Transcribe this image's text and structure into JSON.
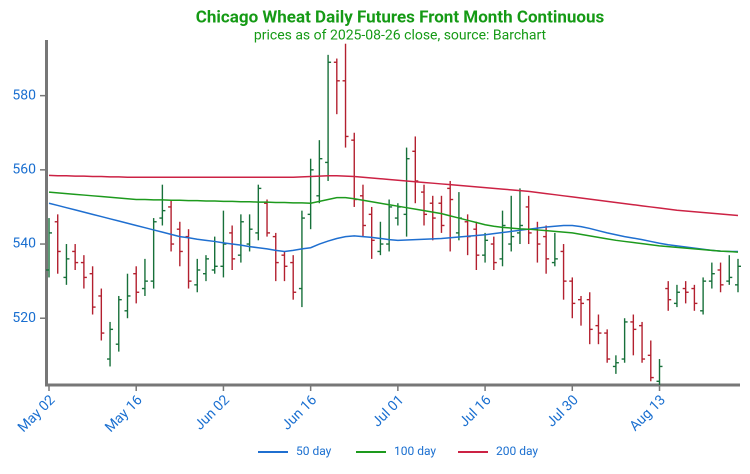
{
  "chart_data": {
    "type": "ohlc",
    "title": "Chicago Wheat Daily Futures Front Month Continuous",
    "subtitle": "prices as of 2025-08-26 close, source: Barchart",
    "categories": [
      "May 02",
      null,
      null,
      null,
      null,
      null,
      null,
      null,
      null,
      null,
      "May 16",
      null,
      null,
      null,
      null,
      null,
      null,
      null,
      null,
      null,
      "Jun 02",
      null,
      null,
      null,
      null,
      null,
      null,
      null,
      null,
      null,
      "Jun 16",
      null,
      null,
      null,
      null,
      null,
      null,
      null,
      null,
      null,
      "Jul 01",
      null,
      null,
      null,
      null,
      null,
      null,
      null,
      null,
      null,
      "Jul 16",
      null,
      null,
      null,
      null,
      null,
      null,
      null,
      null,
      null,
      "Jul 30",
      null,
      null,
      null,
      null,
      null,
      null,
      null,
      null,
      null,
      "Aug 13",
      null,
      null,
      null,
      null,
      null,
      null,
      null,
      null,
      null
    ],
    "ohlc": {
      "up_color": "#17703a",
      "down_color": "#b3202f",
      "open": [
        533,
        546,
        531,
        538,
        535,
        532,
        526,
        509,
        513,
        522,
        532,
        528,
        530,
        547,
        550,
        544,
        542,
        529,
        532,
        533,
        534,
        543,
        537,
        540,
        543,
        551,
        542,
        537,
        535,
        528,
        548,
        553,
        562,
        589,
        584,
        568,
        553,
        548,
        538,
        540,
        547,
        548,
        565,
        554,
        551,
        551,
        555,
        543,
        546,
        544,
        537,
        540,
        536,
        540,
        543,
        550,
        544,
        542,
        535,
        538,
        530,
        525,
        525,
        518,
        516,
        507,
        509,
        519,
        518,
        510,
        503,
        528,
        524,
        528,
        528,
        522,
        530,
        533,
        530,
        529
      ],
      "high": [
        547,
        548,
        540,
        540,
        537,
        534,
        528,
        519,
        526,
        532,
        534,
        536,
        547,
        556,
        552,
        546,
        544,
        536,
        537,
        542,
        549,
        545,
        548,
        548,
        556,
        552,
        543,
        538,
        537,
        549,
        563,
        568,
        591,
        590,
        594,
        570,
        556,
        550,
        546,
        552,
        551,
        566,
        569,
        556,
        553,
        553,
        557,
        554,
        548,
        546,
        543,
        542,
        549,
        553,
        555,
        553,
        546,
        545,
        543,
        540,
        531,
        526,
        527,
        521,
        517,
        510,
        520,
        521,
        519,
        514,
        509,
        530,
        529,
        530,
        529,
        531,
        535,
        535,
        537,
        536
      ],
      "low": [
        531,
        532,
        529,
        533,
        528,
        521,
        514,
        507,
        511,
        520,
        524,
        526,
        528,
        545,
        538,
        534,
        528,
        527,
        530,
        532,
        531,
        533,
        535,
        538,
        541,
        542,
        530,
        530,
        525,
        523,
        544,
        551,
        557,
        575,
        566,
        550,
        542,
        536,
        537,
        538,
        545,
        542,
        551,
        545,
        541,
        543,
        538,
        541,
        537,
        533,
        535,
        533,
        534,
        538,
        540,
        540,
        535,
        532,
        534,
        525,
        520,
        518,
        513,
        513,
        508,
        505,
        508,
        510,
        508,
        503,
        502,
        522,
        523,
        524,
        522,
        521,
        528,
        527,
        529,
        527
      ],
      "close": [
        543,
        538,
        536,
        535,
        531,
        523,
        516,
        517,
        525,
        526,
        527,
        530,
        546,
        549,
        540,
        538,
        530,
        533,
        536,
        534,
        540,
        536,
        546,
        544,
        555,
        543,
        535,
        534,
        527,
        547,
        560,
        563,
        589,
        584,
        569,
        552,
        545,
        541,
        540,
        550,
        550,
        563,
        557,
        548,
        547,
        545,
        552,
        547,
        542,
        537,
        541,
        535,
        545,
        542,
        545,
        543,
        540,
        536,
        536,
        530,
        524,
        524,
        517,
        516,
        509,
        508,
        519,
        517,
        509,
        504,
        507,
        525,
        527,
        527,
        524,
        530,
        532,
        529,
        531,
        534
      ]
    },
    "series": [
      {
        "name": "50 day",
        "color": "#1f6fd0",
        "values": [
          551,
          550.4,
          549.8,
          549.2,
          548.6,
          548,
          547.4,
          546.8,
          546.2,
          545.6,
          545,
          544.4,
          543.8,
          543.2,
          542.6,
          542,
          541.7,
          541.3,
          541,
          540.7,
          540.3,
          540,
          539.7,
          539.3,
          539,
          538.7,
          538.3,
          538,
          538.3,
          538.7,
          539,
          540,
          540.8,
          541.5,
          542,
          542.2,
          542,
          541.8,
          541.5,
          541.2,
          541,
          541.1,
          541.2,
          541.3,
          541.4,
          541.5,
          541.7,
          541.9,
          542.1,
          542.3,
          542.5,
          542.8,
          543.1,
          543.4,
          543.7,
          544,
          544.3,
          544.6,
          544.8,
          545,
          545,
          544.7,
          544.2,
          543.6,
          543,
          542.5,
          542,
          541.6,
          541.2,
          540.7,
          540.2,
          539.8,
          539.5,
          539.2,
          538.9,
          538.6,
          538.3,
          538.1,
          538,
          538
        ]
      },
      {
        "name": "100 day",
        "color": "#1d9a1d",
        "values": [
          554,
          553.8,
          553.6,
          553.4,
          553.2,
          553,
          552.8,
          552.6,
          552.4,
          552.2,
          552,
          552,
          551.9,
          551.9,
          551.8,
          551.8,
          551.7,
          551.7,
          551.6,
          551.6,
          551.5,
          551.5,
          551.4,
          551.4,
          551.3,
          551.3,
          551.2,
          551.2,
          551.1,
          551.1,
          551,
          551.5,
          552,
          552.5,
          552.5,
          552.2,
          551.8,
          551.4,
          551,
          550.6,
          550.2,
          549.8,
          549.4,
          549,
          548.6,
          548.2,
          547.6,
          547,
          546.4,
          545.8,
          545.2,
          544.8,
          544.5,
          544.3,
          544.1,
          544,
          543.8,
          543.6,
          543.4,
          543.2,
          543,
          542.6,
          542.2,
          541.8,
          541.4,
          541,
          540.7,
          540.4,
          540.1,
          539.8,
          539.5,
          539.3,
          539.1,
          538.9,
          538.7,
          538.5,
          538.3,
          538.1,
          538,
          537.8
        ]
      },
      {
        "name": "200 day",
        "color": "#cc2244",
        "values": [
          558.5,
          558.4,
          558.4,
          558.3,
          558.3,
          558.2,
          558.2,
          558.1,
          558.1,
          558,
          558,
          558,
          558,
          558,
          558,
          558,
          558,
          558,
          558,
          558,
          558,
          558,
          558,
          558,
          558,
          558,
          558,
          558,
          558,
          558.1,
          558.2,
          558.3,
          558.4,
          558.4,
          558.3,
          558.2,
          558,
          557.8,
          557.6,
          557.4,
          557.2,
          557,
          556.8,
          556.6,
          556.4,
          556.2,
          556,
          555.8,
          555.6,
          555.4,
          555.2,
          555,
          554.8,
          554.6,
          554.4,
          554.2,
          553.9,
          553.6,
          553.3,
          553,
          552.7,
          552.4,
          552.1,
          551.8,
          551.5,
          551.2,
          550.9,
          550.6,
          550.3,
          550,
          549.7,
          549.4,
          549.1,
          548.9,
          548.7,
          548.5,
          548.3,
          548.1,
          547.9,
          547.7
        ]
      }
    ],
    "ylim": [
      502,
      595
    ],
    "yticks": [
      520,
      540,
      560,
      580
    ],
    "grid": false,
    "legend": "bottom"
  }
}
